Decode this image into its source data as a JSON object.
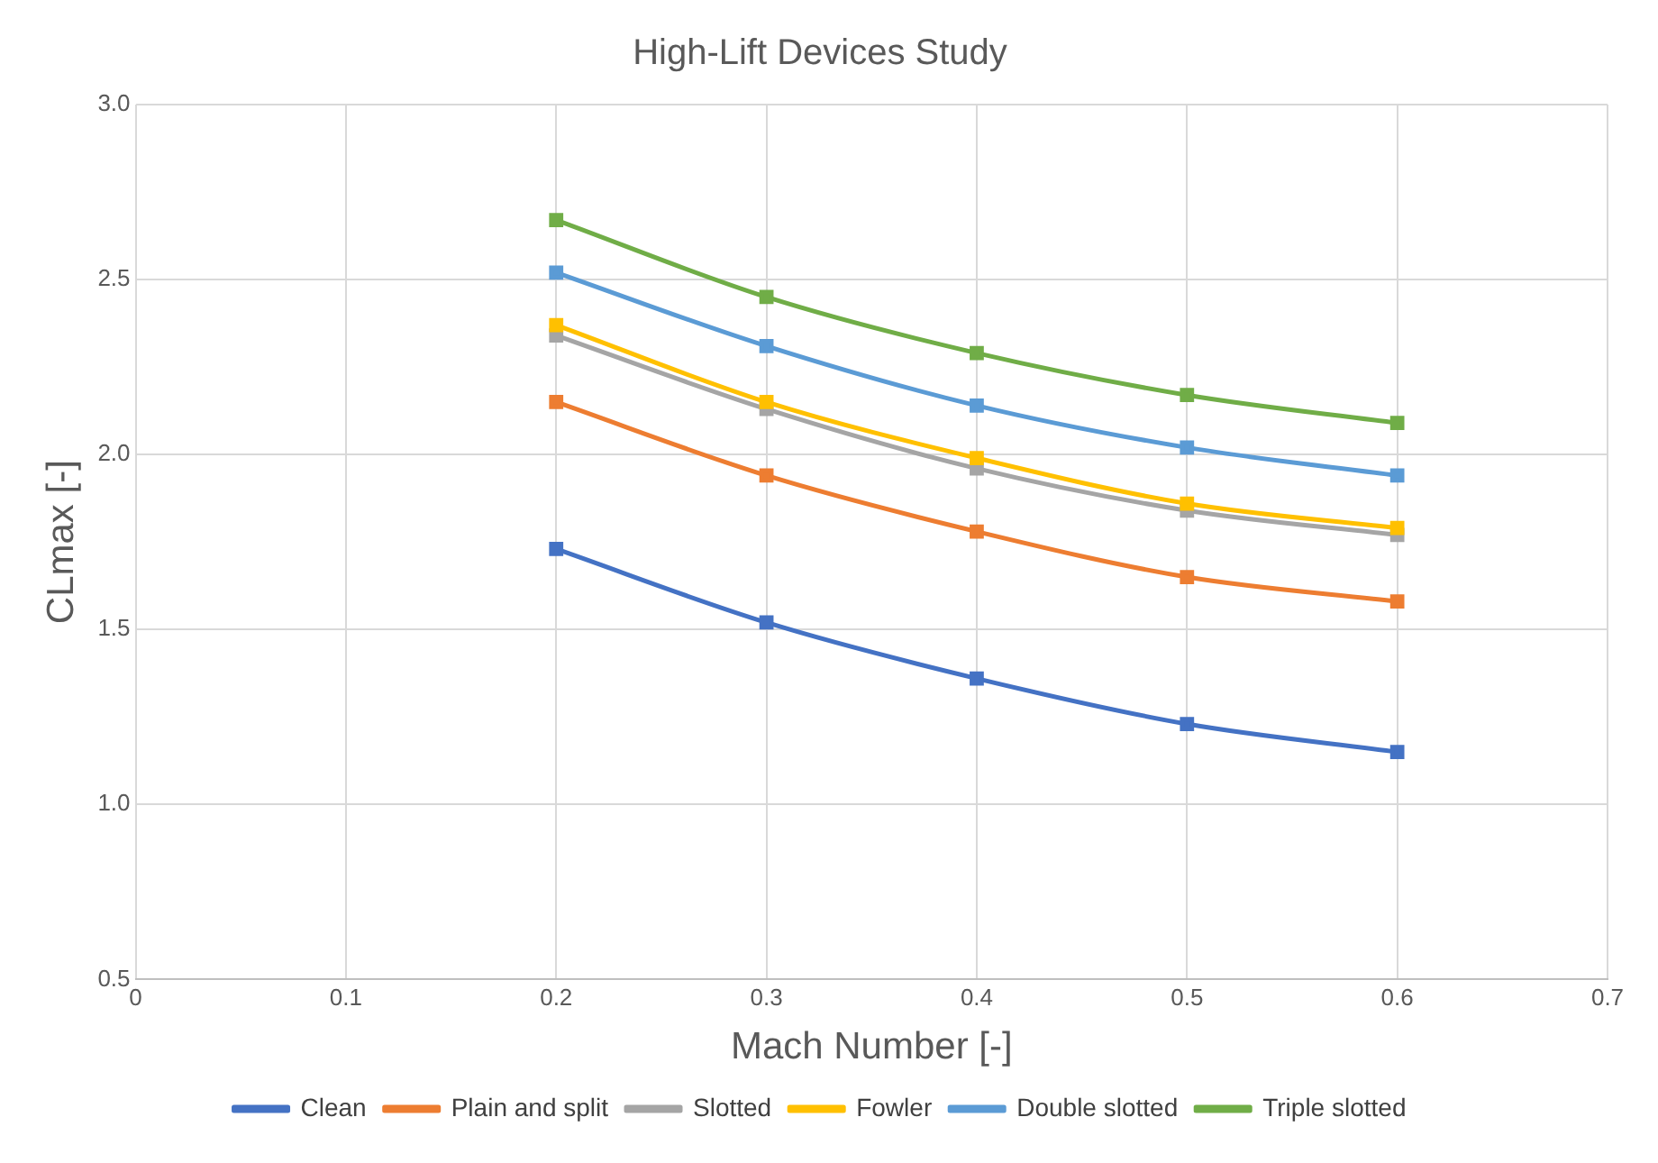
{
  "chart_data": {
    "type": "line",
    "title": "High-Lift Devices Study",
    "xlabel": "Mach Number [-]",
    "ylabel": "CLmax [-]",
    "x": [
      0.2,
      0.3,
      0.4,
      0.5,
      0.6
    ],
    "series": [
      {
        "name": "Clean",
        "color": "#4472c4",
        "values": [
          1.73,
          1.52,
          1.36,
          1.23,
          1.15
        ]
      },
      {
        "name": "Plain and split",
        "color": "#ed7d31",
        "values": [
          2.15,
          1.94,
          1.78,
          1.65,
          1.58
        ]
      },
      {
        "name": "Slotted",
        "color": "#a5a5a5",
        "values": [
          2.34,
          2.13,
          1.96,
          1.84,
          1.77
        ]
      },
      {
        "name": "Fowler",
        "color": "#ffc000",
        "values": [
          2.37,
          2.15,
          1.99,
          1.86,
          1.79
        ]
      },
      {
        "name": "Double slotted",
        "color": "#5b9bd5",
        "values": [
          2.52,
          2.31,
          2.14,
          2.02,
          1.94
        ]
      },
      {
        "name": "Triple slotted",
        "color": "#70ad47",
        "values": [
          2.67,
          2.45,
          2.29,
          2.17,
          2.09
        ]
      }
    ],
    "xlim": [
      0,
      0.7
    ],
    "xticks": [
      0,
      0.1,
      0.2,
      0.3,
      0.4,
      0.5,
      0.6,
      0.7
    ],
    "ylim": [
      0.5,
      3.0
    ],
    "yticks": [
      {
        "value": 0.5,
        "label": "0.5"
      },
      {
        "value": 1,
        "label": "1.0"
      },
      {
        "value": 1.5,
        "label": "1.5"
      },
      {
        "value": 2,
        "label": "2.0"
      },
      {
        "value": 2.5,
        "label": "2.5"
      },
      {
        "value": 3,
        "label": "3.0"
      }
    ],
    "grid": true,
    "legend": "bottom",
    "marker": "square",
    "line_style": "solid"
  }
}
